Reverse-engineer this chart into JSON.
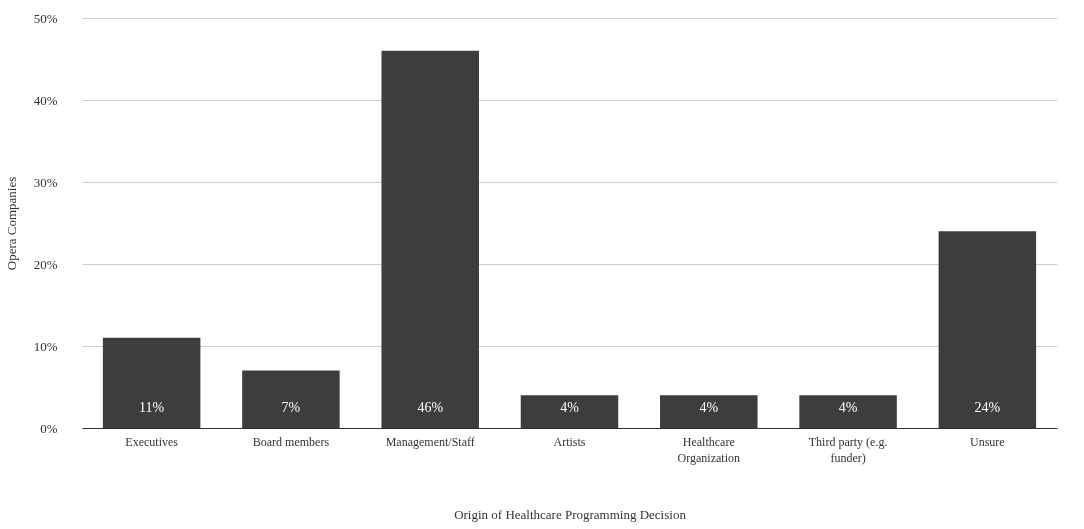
{
  "chart_data": {
    "type": "bar",
    "xlabel": "Origin of Healthcare Programming Decision",
    "ylabel": "Opera Companies",
    "categories": [
      "Executives",
      "Board members",
      "Management/Staff",
      "Artists",
      "Healthcare Organization",
      "Third party (e.g. funder)",
      "Unsure"
    ],
    "values": [
      11,
      7,
      46,
      4,
      4,
      4,
      24
    ],
    "value_labels": [
      "11%",
      "7%",
      "46%",
      "4%",
      "4%",
      "4%",
      "24%"
    ],
    "color": "#3d3d3d",
    "ylim": [
      0,
      50
    ],
    "yticks": [
      {
        "value": 0,
        "label": "0%"
      },
      {
        "value": 10,
        "label": "10%"
      },
      {
        "value": 20,
        "label": "20%"
      },
      {
        "value": 30,
        "label": "30%"
      },
      {
        "value": 40,
        "label": "40%"
      },
      {
        "value": 50,
        "label": "50%"
      }
    ],
    "grid": "y"
  }
}
